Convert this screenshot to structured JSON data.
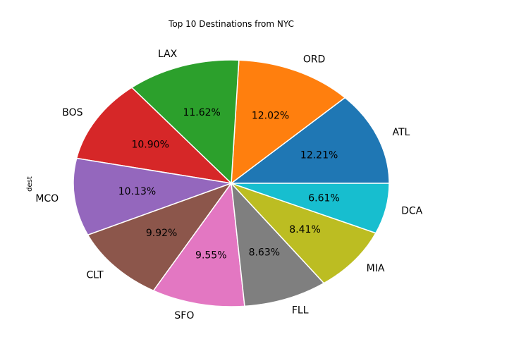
{
  "chart_data": {
    "type": "pie",
    "title": "Top 10 Destinations from NYC",
    "ylabel": "dest",
    "direction": "counterclockwise",
    "start_angle_deg": 0,
    "slices": [
      {
        "label": "ATL",
        "percent": 12.21,
        "percent_label": "12.21%",
        "color": "#1f77b4"
      },
      {
        "label": "ORD",
        "percent": 12.02,
        "percent_label": "12.02%",
        "color": "#ff7f0e"
      },
      {
        "label": "LAX",
        "percent": 11.62,
        "percent_label": "11.62%",
        "color": "#2ca02c"
      },
      {
        "label": "BOS",
        "percent": 10.9,
        "percent_label": "10.90%",
        "color": "#d62728"
      },
      {
        "label": "MCO",
        "percent": 10.13,
        "percent_label": "10.13%",
        "color": "#9467bd"
      },
      {
        "label": "CLT",
        "percent": 9.92,
        "percent_label": "9.92%",
        "color": "#8c564b"
      },
      {
        "label": "SFO",
        "percent": 9.55,
        "percent_label": "9.55%",
        "color": "#e377c2"
      },
      {
        "label": "FLL",
        "percent": 8.63,
        "percent_label": "8.63%",
        "color": "#7f7f7f"
      },
      {
        "label": "MIA",
        "percent": 8.41,
        "percent_label": "8.41%",
        "color": "#bcbd22"
      },
      {
        "label": "DCA",
        "percent": 6.61,
        "percent_label": "6.61%",
        "color": "#17becf"
      }
    ]
  }
}
